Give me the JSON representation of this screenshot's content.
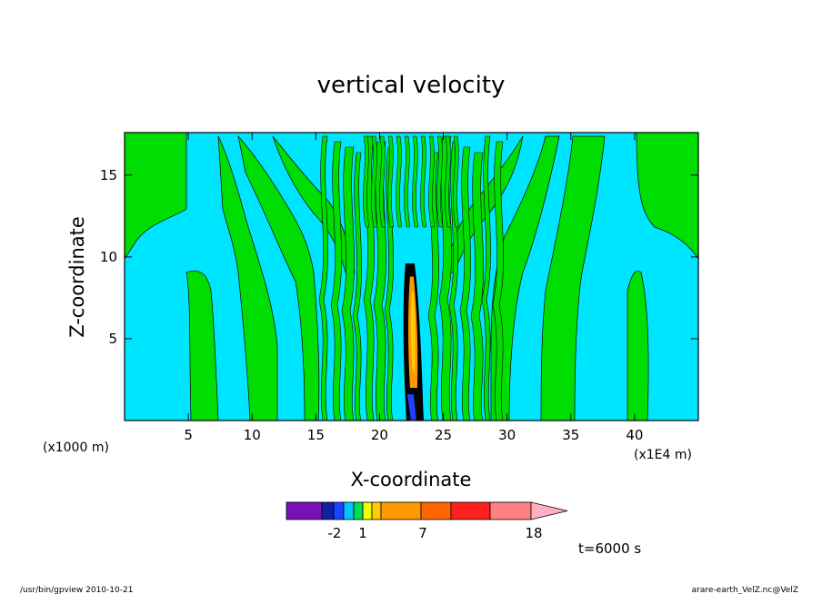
{
  "chart_data": {
    "type": "heatmap",
    "title": "vertical velocity",
    "xlabel": "X-coordinate",
    "ylabel": "Z-coordinate",
    "x_unit_left": "(x1000 m)",
    "x_unit_right": "(x1E4 m)",
    "xlim": [
      0,
      45
    ],
    "ylim": [
      0,
      17.6
    ],
    "xticks": [
      "5",
      "10",
      "15",
      "20",
      "25",
      "30",
      "35",
      "40"
    ],
    "yticks": [
      "5",
      "10",
      "15"
    ],
    "colorbar": {
      "levels": 14,
      "colors": [
        "#7a10b8",
        "#1020a0",
        "#2040ff",
        "#00c8ff",
        "#00dd55",
        "#eeff00",
        "#ffcc00",
        "#ff9900",
        "#ff6600",
        "#ff2020",
        "#ff8080",
        "#ffb0c0"
      ],
      "tick_labels": [
        "-2",
        "1",
        "7",
        "18"
      ]
    },
    "background_color": "#00e5ff",
    "positive_color": "#00dd00",
    "time_label": "t=6000 s"
  },
  "footer": {
    "left": "/usr/bin/gpview   2010-10-21",
    "right": "arare-earth_VelZ.nc@VelZ"
  }
}
